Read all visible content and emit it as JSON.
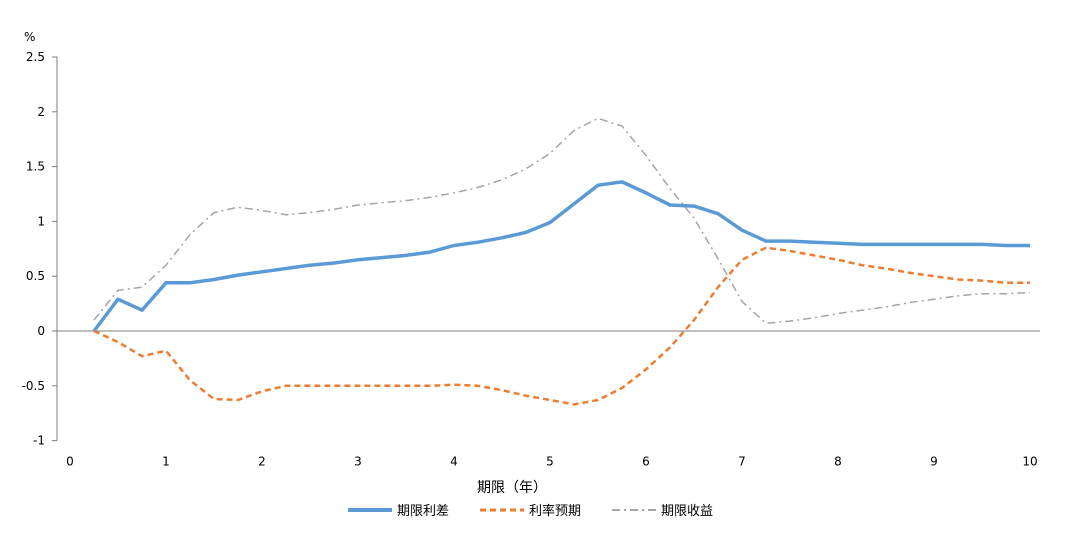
{
  "chart_data": {
    "type": "line",
    "title": "",
    "y_unit": "%",
    "xlabel": "期限（年）",
    "ylabel": "",
    "xlim": [
      0,
      10
    ],
    "ylim": [
      -1,
      2.5
    ],
    "x_ticks": [
      0,
      1,
      2,
      3,
      4,
      5,
      6,
      7,
      8,
      9,
      10
    ],
    "y_ticks": [
      -1,
      -0.5,
      0,
      0.5,
      1,
      1.5,
      2,
      2.5
    ],
    "grid": false,
    "legend_position": "bottom",
    "series": [
      {
        "name": "期限利差",
        "color": "#5b9bd5",
        "style": "solid",
        "points": [
          [
            0.25,
            0
          ],
          [
            0.5,
            0.29
          ],
          [
            0.75,
            0.19
          ],
          [
            1.0,
            0.44
          ],
          [
            1.25,
            0.44
          ],
          [
            1.5,
            0.47
          ],
          [
            1.75,
            0.51
          ],
          [
            2.0,
            0.54
          ],
          [
            2.25,
            0.57
          ],
          [
            2.5,
            0.6
          ],
          [
            2.75,
            0.62
          ],
          [
            3.0,
            0.65
          ],
          [
            3.25,
            0.67
          ],
          [
            3.5,
            0.69
          ],
          [
            3.75,
            0.72
          ],
          [
            4.0,
            0.78
          ],
          [
            4.25,
            0.81
          ],
          [
            4.5,
            0.85
          ],
          [
            4.75,
            0.9
          ],
          [
            5.0,
            0.99
          ],
          [
            5.25,
            1.16
          ],
          [
            5.5,
            1.33
          ],
          [
            5.75,
            1.36
          ],
          [
            6.0,
            1.26
          ],
          [
            6.25,
            1.15
          ],
          [
            6.5,
            1.14
          ],
          [
            6.75,
            1.07
          ],
          [
            7.0,
            0.92
          ],
          [
            7.25,
            0.82
          ],
          [
            7.5,
            0.82
          ],
          [
            7.75,
            0.81
          ],
          [
            8.0,
            0.8
          ],
          [
            8.25,
            0.79
          ],
          [
            8.5,
            0.79
          ],
          [
            8.75,
            0.79
          ],
          [
            9.0,
            0.79
          ],
          [
            9.25,
            0.79
          ],
          [
            9.5,
            0.79
          ],
          [
            9.75,
            0.78
          ],
          [
            10.0,
            0.78
          ]
        ]
      },
      {
        "name": "利率预期",
        "color": "#ed7d31",
        "style": "dashed",
        "points": [
          [
            0.25,
            0
          ],
          [
            0.5,
            -0.1
          ],
          [
            0.75,
            -0.23
          ],
          [
            1.0,
            -0.18
          ],
          [
            1.25,
            -0.45
          ],
          [
            1.5,
            -0.62
          ],
          [
            1.75,
            -0.63
          ],
          [
            2.0,
            -0.55
          ],
          [
            2.25,
            -0.5
          ],
          [
            2.5,
            -0.5
          ],
          [
            2.75,
            -0.5
          ],
          [
            3.0,
            -0.5
          ],
          [
            3.25,
            -0.5
          ],
          [
            3.5,
            -0.5
          ],
          [
            3.75,
            -0.5
          ],
          [
            4.0,
            -0.49
          ],
          [
            4.25,
            -0.5
          ],
          [
            4.5,
            -0.54
          ],
          [
            4.75,
            -0.59
          ],
          [
            5.0,
            -0.63
          ],
          [
            5.25,
            -0.67
          ],
          [
            5.5,
            -0.63
          ],
          [
            5.75,
            -0.52
          ],
          [
            6.0,
            -0.35
          ],
          [
            6.25,
            -0.15
          ],
          [
            6.5,
            0.1
          ],
          [
            6.75,
            0.4
          ],
          [
            7.0,
            0.65
          ],
          [
            7.25,
            0.76
          ],
          [
            7.5,
            0.73
          ],
          [
            7.75,
            0.69
          ],
          [
            8.0,
            0.65
          ],
          [
            8.25,
            0.6
          ],
          [
            8.5,
            0.57
          ],
          [
            8.75,
            0.53
          ],
          [
            9.0,
            0.5
          ],
          [
            9.25,
            0.47
          ],
          [
            9.5,
            0.46
          ],
          [
            9.75,
            0.44
          ],
          [
            10.0,
            0.44
          ]
        ]
      },
      {
        "name": "期限收益",
        "color": "#a5a5a5",
        "style": "dashdot",
        "points": [
          [
            0.25,
            0.1
          ],
          [
            0.5,
            0.37
          ],
          [
            0.75,
            0.4
          ],
          [
            1.0,
            0.6
          ],
          [
            1.25,
            0.88
          ],
          [
            1.5,
            1.08
          ],
          [
            1.75,
            1.13
          ],
          [
            2.0,
            1.1
          ],
          [
            2.25,
            1.06
          ],
          [
            2.5,
            1.08
          ],
          [
            2.75,
            1.11
          ],
          [
            3.0,
            1.15
          ],
          [
            3.25,
            1.17
          ],
          [
            3.5,
            1.19
          ],
          [
            3.75,
            1.22
          ],
          [
            4.0,
            1.26
          ],
          [
            4.25,
            1.31
          ],
          [
            4.5,
            1.38
          ],
          [
            4.75,
            1.48
          ],
          [
            5.0,
            1.62
          ],
          [
            5.25,
            1.83
          ],
          [
            5.5,
            1.94
          ],
          [
            5.75,
            1.87
          ],
          [
            6.0,
            1.6
          ],
          [
            6.25,
            1.3
          ],
          [
            6.5,
            1.03
          ],
          [
            6.75,
            0.66
          ],
          [
            7.0,
            0.27
          ],
          [
            7.25,
            0.07
          ],
          [
            7.5,
            0.09
          ],
          [
            7.75,
            0.12
          ],
          [
            8.0,
            0.16
          ],
          [
            8.25,
            0.19
          ],
          [
            8.5,
            0.22
          ],
          [
            8.75,
            0.26
          ],
          [
            9.0,
            0.29
          ],
          [
            9.25,
            0.32
          ],
          [
            9.5,
            0.34
          ],
          [
            9.75,
            0.34
          ],
          [
            10.0,
            0.35
          ]
        ]
      }
    ]
  }
}
